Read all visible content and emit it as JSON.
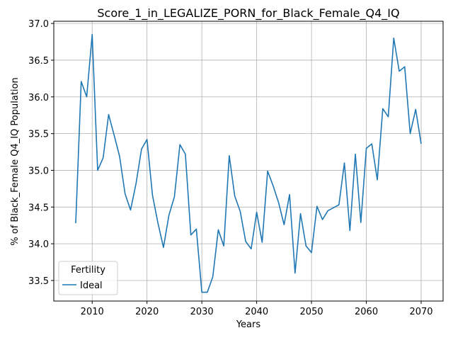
{
  "chart_data": {
    "type": "line",
    "title": "Score_1_in_LEGALIZE_PORN_for_Black_Female_Q4_IQ",
    "xlabel": "Years",
    "ylabel": "% of Black_Female Q4_IQ Population",
    "xlim": [
      2003,
      2074
    ],
    "ylim": [
      33.22,
      37.03
    ],
    "xticks": [
      2010,
      2020,
      2030,
      2040,
      2050,
      2060,
      2070
    ],
    "yticks": [
      33.5,
      34.0,
      34.5,
      35.0,
      35.5,
      36.0,
      36.5,
      37.0
    ],
    "grid": true,
    "legend": {
      "title": "Fertility",
      "location": "lower-left",
      "entries": [
        "Ideal"
      ]
    },
    "series": [
      {
        "name": "Ideal",
        "color": "#1f77b4",
        "x": [
          2007,
          2008,
          2009,
          2010,
          2011,
          2012,
          2013,
          2014,
          2015,
          2016,
          2017,
          2018,
          2019,
          2020,
          2021,
          2022,
          2023,
          2024,
          2025,
          2026,
          2027,
          2028,
          2029,
          2030,
          2031,
          2032,
          2033,
          2034,
          2035,
          2036,
          2037,
          2038,
          2039,
          2040,
          2041,
          2042,
          2043,
          2044,
          2045,
          2046,
          2047,
          2048,
          2049,
          2050,
          2051,
          2052,
          2053,
          2054,
          2055,
          2056,
          2057,
          2058,
          2059,
          2060,
          2061,
          2062,
          2063,
          2064,
          2065,
          2066,
          2067,
          2068,
          2069,
          2070
        ],
        "values": [
          34.28,
          36.21,
          36.0,
          36.85,
          35.0,
          35.17,
          35.76,
          35.48,
          35.19,
          34.68,
          34.46,
          34.82,
          35.29,
          35.42,
          34.66,
          34.28,
          33.95,
          34.39,
          34.64,
          35.35,
          35.22,
          34.12,
          34.2,
          33.34,
          33.34,
          33.55,
          34.19,
          33.97,
          35.2,
          34.65,
          34.44,
          34.03,
          33.93,
          34.43,
          34.02,
          34.99,
          34.79,
          34.56,
          34.26,
          34.67,
          33.6,
          34.41,
          33.97,
          33.88,
          34.51,
          34.33,
          34.45,
          34.49,
          34.53,
          35.1,
          34.18,
          35.22,
          34.29,
          35.3,
          35.36,
          34.87,
          35.84,
          35.73,
          36.8,
          36.35,
          36.41,
          35.5,
          35.83,
          35.36
        ]
      }
    ]
  }
}
